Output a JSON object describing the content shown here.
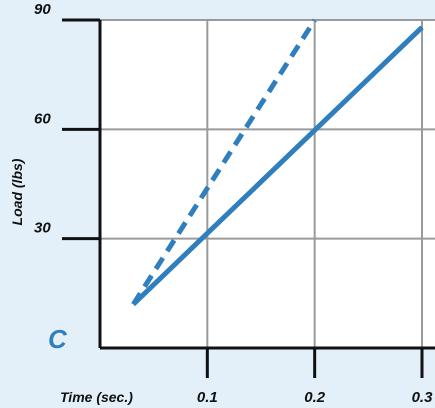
{
  "chart_data": {
    "type": "line",
    "panel_label": "C",
    "xlabel": "Time (sec.)",
    "ylabel": "Load (lbs)",
    "xlim": [
      0,
      0.3
    ],
    "ylim": [
      0,
      90
    ],
    "x_ticks": [
      {
        "value": 0.1,
        "label": "0.1"
      },
      {
        "value": 0.2,
        "label": "0.2"
      },
      {
        "value": 0.3,
        "label": "0.3"
      }
    ],
    "y_ticks": [
      {
        "value": 30,
        "label": "30"
      },
      {
        "value": 60,
        "label": "60"
      },
      {
        "value": 90,
        "label": "90"
      }
    ],
    "grid": true,
    "series": [
      {
        "style": "solid",
        "x": [
          0.031,
          0.3
        ],
        "y": [
          12,
          88
        ]
      },
      {
        "style": "dashed",
        "x": [
          0.031,
          0.2
        ],
        "y": [
          12,
          90
        ]
      }
    ],
    "colors": {
      "background": "#e4f0f9",
      "plot_area": "#ffffff",
      "grid": "#9a9a9a",
      "axis": "#111111",
      "series": "#2f7fbe",
      "panel_label": "#2f7fbe"
    }
  }
}
